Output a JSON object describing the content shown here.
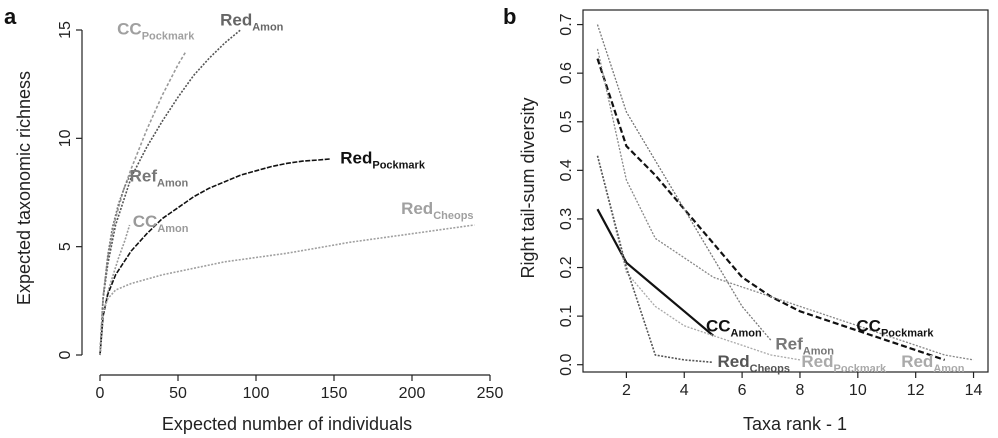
{
  "chart_data": [
    {
      "panel": "a",
      "type": "line",
      "xlabel": "Expected number of individuals",
      "ylabel": "Expected taxonomic richness",
      "xlim": [
        0,
        250
      ],
      "ylim": [
        0,
        15
      ],
      "xticks": [
        "0",
        "50",
        "100",
        "150",
        "200",
        "250"
      ],
      "yticks": [
        "0",
        "5",
        "10",
        "15"
      ],
      "grid": false,
      "series": [
        {
          "name_main": "CC",
          "name_sub": "Pockmark",
          "color": "#9a9a9a",
          "dash": "3,2",
          "x": [
            0,
            2,
            5,
            10,
            15,
            20,
            30,
            40,
            50,
            55
          ],
          "y": [
            0,
            2.7,
            4.5,
            6.3,
            7.6,
            8.6,
            10.4,
            12.0,
            13.4,
            14.0
          ]
        },
        {
          "name_main": "Red",
          "name_sub": "Amon",
          "color": "#555555",
          "dash": "2,1.5",
          "x": [
            0,
            2,
            5,
            10,
            20,
            30,
            40,
            50,
            60,
            70,
            80,
            90
          ],
          "y": [
            0,
            2.6,
            4.2,
            6.0,
            8.2,
            9.6,
            10.8,
            11.9,
            12.9,
            13.7,
            14.4,
            15.0
          ]
        },
        {
          "name_main": "Ref",
          "name_sub": "Amon",
          "color": "#777777",
          "dash": "2,1.5",
          "x": [
            0,
            2,
            5,
            8,
            12,
            16,
            20
          ],
          "y": [
            0,
            2.6,
            4.6,
            5.9,
            7.0,
            7.8,
            8.4
          ]
        },
        {
          "name_main": "CC",
          "name_sub": "Amon",
          "color": "#9a9a9a",
          "dash": "2,1.5",
          "x": [
            0,
            2,
            5,
            8,
            12,
            16,
            19
          ],
          "y": [
            0,
            1.8,
            2.9,
            3.6,
            4.5,
            5.3,
            6.0
          ]
        },
        {
          "name_main": "Red",
          "name_sub": "Pockmark",
          "color": "#111111",
          "dash": "5,1.5",
          "x": [
            0,
            2,
            5,
            10,
            20,
            30,
            40,
            50,
            60,
            70,
            80,
            90,
            100,
            110,
            120,
            130,
            140,
            148
          ],
          "y": [
            0,
            1.8,
            2.8,
            3.7,
            4.8,
            5.6,
            6.3,
            6.8,
            7.3,
            7.7,
            8.0,
            8.3,
            8.5,
            8.7,
            8.85,
            8.95,
            9.0,
            9.05
          ]
        },
        {
          "name_main": "Red",
          "name_sub": "Cheops",
          "color": "#a0a0a0",
          "dash": "2,1.5",
          "x": [
            0,
            2,
            5,
            10,
            20,
            40,
            60,
            80,
            100,
            120,
            140,
            160,
            180,
            200,
            220,
            240
          ],
          "y": [
            0,
            2.0,
            2.6,
            3.0,
            3.3,
            3.7,
            4.0,
            4.3,
            4.5,
            4.7,
            4.95,
            5.2,
            5.4,
            5.6,
            5.8,
            6.0
          ]
        }
      ],
      "labels": [
        {
          "main": "CC",
          "sub": "Pockmark",
          "x": 11,
          "y": 14.8,
          "color": "#a0a0a0"
        },
        {
          "main": "Red",
          "sub": "Amon",
          "x": 77,
          "y": 15.2,
          "color": "#666666"
        },
        {
          "main": "Ref",
          "sub": "Amon",
          "x": 19,
          "y": 8.0,
          "color": "#777777"
        },
        {
          "main": "CC",
          "sub": "Amon",
          "x": 21,
          "y": 5.9,
          "color": "#9a9a9a"
        },
        {
          "main": "Red",
          "sub": "Pockmark",
          "x": 154,
          "y": 8.85,
          "color": "#111111"
        },
        {
          "main": "Red",
          "sub": "Cheops",
          "x": 193,
          "y": 6.5,
          "color": "#a0a0a0"
        }
      ]
    },
    {
      "panel": "b",
      "type": "line",
      "xlabel": "Taxa rank - 1",
      "ylabel": "Right tail-sum diversity",
      "xlim": [
        0.5,
        14.5
      ],
      "ylim": [
        -0.015,
        0.73
      ],
      "xticks": [
        "2",
        "4",
        "6",
        "8",
        "10",
        "12",
        "14"
      ],
      "yticks": [
        "0.0",
        "0.1",
        "0.2",
        "0.3",
        "0.4",
        "0.5",
        "0.6",
        "0.7"
      ],
      "grid": false,
      "series": [
        {
          "name_main": "CC",
          "name_sub": "Pockmark",
          "color": "#111111",
          "dash": "6,3",
          "width": 2.2,
          "x": [
            1,
            2,
            3,
            4,
            5,
            6,
            7,
            8,
            9,
            10,
            11,
            12,
            13
          ],
          "y": [
            0.63,
            0.45,
            0.39,
            0.32,
            0.25,
            0.18,
            0.14,
            0.11,
            0.09,
            0.07,
            0.05,
            0.03,
            0.01
          ]
        },
        {
          "name_main": "Ref",
          "name_sub": "Amon",
          "color": "#777777",
          "dash": "2,1.5",
          "width": 1.3,
          "x": [
            1,
            2,
            3,
            4,
            5,
            6,
            7
          ],
          "y": [
            0.7,
            0.52,
            0.42,
            0.32,
            0.22,
            0.12,
            0.05
          ]
        },
        {
          "name_main": "Red",
          "name_sub": "Amon",
          "color": "#888888",
          "dash": "2,1.5",
          "width": 1.3,
          "x": [
            1,
            2,
            3,
            4,
            5,
            6,
            7,
            8,
            9,
            10,
            11,
            12,
            13,
            14
          ],
          "y": [
            0.65,
            0.38,
            0.26,
            0.22,
            0.18,
            0.16,
            0.14,
            0.12,
            0.1,
            0.08,
            0.06,
            0.04,
            0.02,
            0.01
          ]
        },
        {
          "name_main": "CC",
          "name_sub": "Amon",
          "color": "#111111",
          "dash": "",
          "width": 2.2,
          "x": [
            1,
            2,
            3,
            4,
            5
          ],
          "y": [
            0.32,
            0.21,
            0.16,
            0.11,
            0.06
          ]
        },
        {
          "name_main": "Red",
          "name_sub": "Pockmark",
          "color": "#aaaaaa",
          "dash": "2,1.5",
          "width": 1.3,
          "x": [
            1,
            2,
            3,
            4,
            5,
            6,
            7,
            8
          ],
          "y": [
            0.43,
            0.19,
            0.12,
            0.08,
            0.06,
            0.04,
            0.02,
            0.01
          ]
        },
        {
          "name_main": "Red",
          "name_sub": "Cheops",
          "color": "#555555",
          "dash": "2,1.5",
          "width": 1.6,
          "x": [
            1,
            2,
            3,
            4,
            5
          ],
          "y": [
            0.43,
            0.2,
            0.02,
            0.01,
            0.005
          ]
        }
      ],
      "labels": [
        {
          "main": "CC",
          "sub": "Amon",
          "x": 4.75,
          "y": 0.068,
          "color": "#111111"
        },
        {
          "main": "Ref",
          "sub": "Amon",
          "x": 7.15,
          "y": 0.031,
          "color": "#777777"
        },
        {
          "main": "CC",
          "sub": "Pockmark",
          "x": 9.95,
          "y": 0.068,
          "color": "#111111"
        },
        {
          "main": "Red",
          "sub": "Cheops",
          "x": 5.15,
          "y": -0.005,
          "color": "#555555"
        },
        {
          "main": "Red",
          "sub": "Pockmark",
          "x": 8.05,
          "y": -0.005,
          "color": "#aaaaaa"
        },
        {
          "main": "Red",
          "sub": "Amon",
          "x": 11.5,
          "y": -0.005,
          "color": "#aaaaaa"
        }
      ]
    }
  ]
}
